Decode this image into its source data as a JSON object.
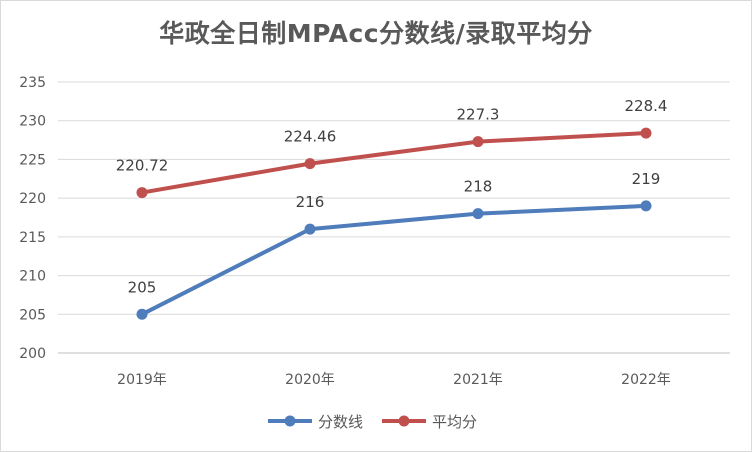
{
  "chart_data": {
    "type": "line",
    "title": "华政全日制MPAcc分数线/录取平均分",
    "categories": [
      "2019年",
      "2020年",
      "2021年",
      "2022年"
    ],
    "ylim": [
      200,
      235
    ],
    "yticks": [
      200,
      205,
      210,
      215,
      220,
      225,
      230,
      235
    ],
    "grid": true,
    "legend_position": "bottom",
    "series": [
      {
        "name": "分数线",
        "values": [
          205,
          216,
          218,
          219
        ],
        "labels": [
          "205",
          "216",
          "218",
          "219"
        ],
        "color": "#4f7cba"
      },
      {
        "name": "平均分",
        "values": [
          220.72,
          224.46,
          227.3,
          228.4
        ],
        "labels": [
          "220.72",
          "224.46",
          "227.3",
          "228.4"
        ],
        "color": "#c0504d"
      }
    ]
  }
}
